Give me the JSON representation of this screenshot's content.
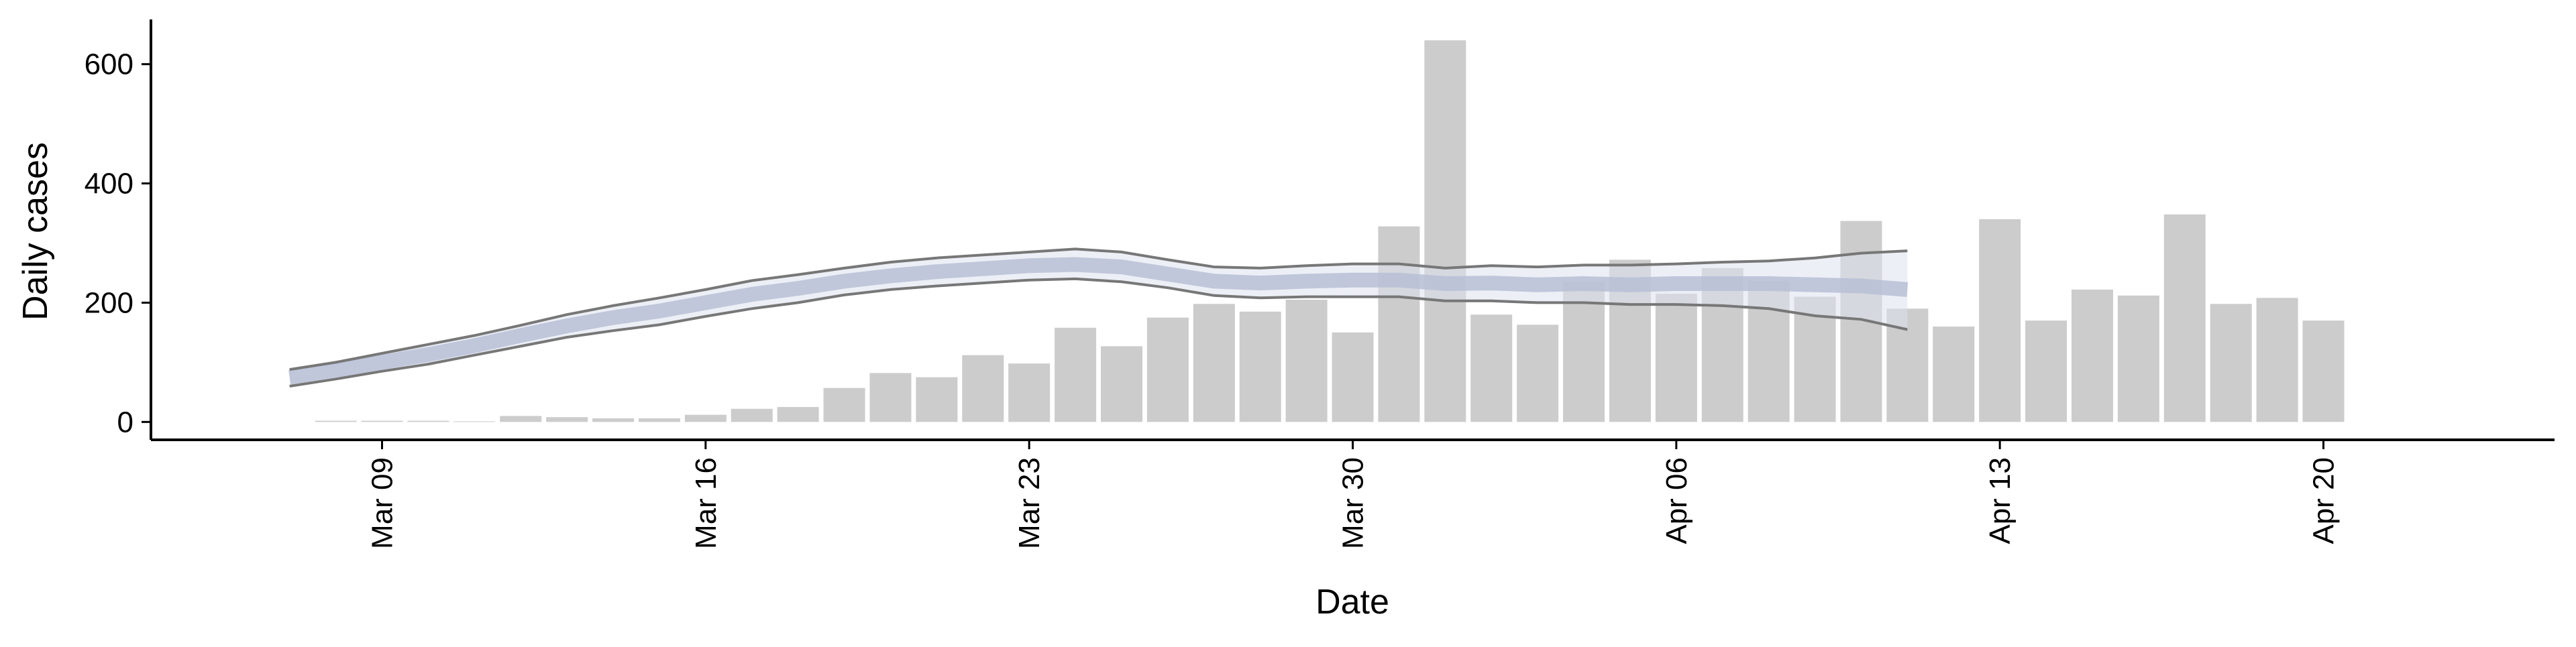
{
  "chart_data": {
    "type": "bar",
    "x_label": "Date",
    "y_label": "Daily cases",
    "xlim": [
      "Mar 04",
      "Apr 25"
    ],
    "xticks": [
      "Mar 09",
      "Mar 16",
      "Mar 23",
      "Mar 30",
      "Apr 06",
      "Apr 13",
      "Apr 20"
    ],
    "ylim": [
      -30,
      675
    ],
    "yticks": [
      0,
      200,
      400,
      600
    ],
    "grid": false,
    "series": [
      {
        "type": "bar",
        "color": "#cccccc",
        "x": [
          "Mar 08",
          "Mar 09",
          "Mar 10",
          "Mar 11",
          "Mar 12",
          "Mar 13",
          "Mar 14",
          "Mar 15",
          "Mar 16",
          "Mar 17",
          "Mar 18",
          "Mar 19",
          "Mar 20",
          "Mar 21",
          "Mar 22",
          "Mar 23",
          "Mar 24",
          "Mar 25",
          "Mar 26",
          "Mar 27",
          "Mar 28",
          "Mar 29",
          "Mar 30",
          "Mar 31",
          "Apr 01",
          "Apr 02",
          "Apr 03",
          "Apr 04",
          "Apr 05",
          "Apr 06",
          "Apr 07",
          "Apr 08",
          "Apr 09",
          "Apr 10",
          "Apr 11",
          "Apr 12",
          "Apr 13",
          "Apr 14",
          "Apr 15",
          "Apr 16",
          "Apr 17",
          "Apr 18",
          "Apr 19",
          "Apr 20"
        ],
        "values": [
          2,
          2,
          2,
          1,
          10,
          8,
          6,
          6,
          12,
          22,
          25,
          57,
          82,
          75,
          112,
          98,
          158,
          127,
          175,
          198,
          185,
          205,
          150,
          328,
          640,
          180,
          163,
          235,
          272,
          215,
          258,
          237,
          210,
          337,
          190,
          160,
          340,
          170,
          222,
          212,
          348,
          198,
          208,
          170
        ]
      },
      {
        "type": "line",
        "color": "#b8c0d6",
        "line_color": "#777777",
        "band_color": "#dde1ec",
        "x": [
          "Mar 07",
          "Mar 08",
          "Mar 09",
          "Mar 10",
          "Mar 11",
          "Mar 12",
          "Mar 13",
          "Mar 14",
          "Mar 15",
          "Mar 16",
          "Mar 17",
          "Mar 18",
          "Mar 19",
          "Mar 20",
          "Mar 21",
          "Mar 22",
          "Mar 23",
          "Mar 24",
          "Mar 25",
          "Mar 26",
          "Mar 27",
          "Mar 28",
          "Mar 29",
          "Mar 30",
          "Mar 31",
          "Apr 01",
          "Apr 02",
          "Apr 03",
          "Apr 04",
          "Apr 05",
          "Apr 06",
          "Apr 07",
          "Apr 08",
          "Apr 09",
          "Apr 10",
          "Apr 11"
        ],
        "values": [
          75,
          87,
          100,
          113,
          128,
          145,
          161,
          175,
          186,
          200,
          214,
          224,
          236,
          245,
          252,
          257,
          262,
          264,
          260,
          248,
          236,
          233,
          236,
          238,
          238,
          232,
          233,
          230,
          232,
          230,
          232,
          232,
          232,
          230,
          228,
          222
        ],
        "upper": [
          88,
          100,
          115,
          130,
          145,
          162,
          180,
          195,
          208,
          222,
          237,
          247,
          258,
          268,
          275,
          280,
          285,
          290,
          285,
          272,
          260,
          258,
          262,
          265,
          265,
          258,
          262,
          260,
          263,
          263,
          265,
          268,
          270,
          275,
          283,
          287
        ],
        "lower": [
          60,
          72,
          85,
          97,
          112,
          127,
          142,
          153,
          163,
          177,
          190,
          200,
          213,
          222,
          228,
          233,
          238,
          240,
          235,
          225,
          212,
          208,
          210,
          210,
          210,
          203,
          203,
          200,
          200,
          197,
          197,
          195,
          190,
          178,
          172,
          155
        ]
      }
    ]
  }
}
